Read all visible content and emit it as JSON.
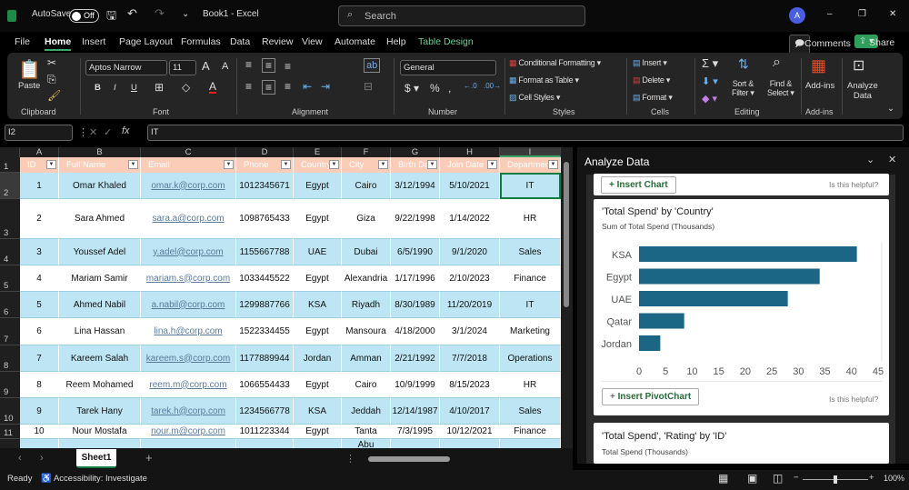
{
  "titlebar": {
    "autosave": "AutoSave",
    "toggle": "Off",
    "doc_title": "Book1 - Excel",
    "search_placeholder": "Search",
    "avatar": "A"
  },
  "menu": {
    "tabs": [
      "File",
      "Home",
      "Insert",
      "Page Layout",
      "Formulas",
      "Data",
      "Review",
      "View",
      "Automate",
      "Help",
      "Table Design"
    ],
    "active": "Home",
    "comments": "Comments",
    "share": "Share"
  },
  "ribbon": {
    "paste": "Paste",
    "font_name": "Aptos Narrow",
    "font_size": "11",
    "number_format": "General",
    "conditional_formatting": "Conditional Formatting",
    "format_as_table": "Format as Table",
    "cell_styles": "Cell Styles",
    "insert": "Insert",
    "delete": "Delete",
    "format": "Format",
    "sort_filter": [
      "Sort &",
      "Filter"
    ],
    "find_select": [
      "Find &",
      "Select"
    ],
    "addins": "Add-ins",
    "analyze_data": [
      "Analyze",
      "Data"
    ],
    "groups": [
      "Clipboard",
      "Font",
      "Alignment",
      "Number",
      "Styles",
      "Cells",
      "Editing",
      "Add-ins"
    ]
  },
  "formula_bar": {
    "name_box": "I2",
    "fx": "fx",
    "value": "IT"
  },
  "sheet": {
    "columns": [
      "A",
      "B",
      "C",
      "D",
      "E",
      "F",
      "G",
      "H",
      "I"
    ],
    "headers": [
      "ID",
      "Full Name",
      "Email",
      "Phone",
      "Country",
      "City",
      "Birth Date",
      "Join Date",
      "Department"
    ],
    "row_numbers": [
      "1",
      "2",
      "3",
      "4",
      "5",
      "6",
      "7",
      "8",
      "9",
      "10",
      "11"
    ],
    "rows": [
      [
        "1",
        "Omar Khaled",
        "omar.k@corp.com",
        "1012345671",
        "Egypt",
        "Cairo",
        "3/12/1994",
        "5/10/2021",
        "IT"
      ],
      [
        "2",
        "Sara Ahmed",
        "sara.a@corp.com",
        "1098765433",
        "Egypt",
        "Giza",
        "9/22/1998",
        "1/14/2022",
        "HR"
      ],
      [
        "3",
        "Youssef Adel",
        "y.adel@corp.com",
        "1155667788",
        "UAE",
        "Dubai",
        "6/5/1990",
        "9/1/2020",
        "Sales"
      ],
      [
        "4",
        "Mariam Samir",
        "mariam.s@corp.com",
        "1033445522",
        "Egypt",
        "Alexandria",
        "1/17/1996",
        "2/10/2023",
        "Finance"
      ],
      [
        "5",
        "Ahmed Nabil",
        "a.nabil@corp.com",
        "1299887766",
        "KSA",
        "Riyadh",
        "8/30/1989",
        "11/20/2019",
        "IT"
      ],
      [
        "6",
        "Lina Hassan",
        "lina.h@corp.com",
        "1522334455",
        "Egypt",
        "Mansoura",
        "4/18/2000",
        "3/1/2024",
        "Marketing"
      ],
      [
        "7",
        "Kareem Salah",
        "kareem.s@corp.com",
        "1177889944",
        "Jordan",
        "Amman",
        "2/21/1992",
        "7/7/2018",
        "Operations"
      ],
      [
        "8",
        "Reem Mohamed",
        "reem.m@corp.com",
        "1066554433",
        "Egypt",
        "Cairo",
        "10/9/1999",
        "8/15/2023",
        "HR"
      ],
      [
        "9",
        "Tarek Hany",
        "tarek.h@corp.com",
        "1234566778",
        "KSA",
        "Jeddah",
        "12/14/1987",
        "4/10/2017",
        "Sales"
      ],
      [
        "10",
        "Nour Mostafa",
        "nour.m@corp.com",
        "1011223344",
        "Egypt",
        "Tanta",
        "7/3/1995",
        "10/12/2021",
        "Finance"
      ],
      [
        "",
        "",
        "",
        "",
        "",
        "Abu",
        "",
        "",
        ""
      ]
    ],
    "sheet_tab": "Sheet1"
  },
  "status": {
    "ready": "Ready",
    "accessibility": "Accessibility: Investigate",
    "zoom": "100%",
    "zoom_level": 100
  },
  "analyze_panel": {
    "title": "Analyze Data",
    "prev_button": "Insert Chart",
    "helpful": "Is this helpful?",
    "card1": {
      "button": "Insert PivotChart",
      "helpful": "Is this helpful?"
    },
    "card2": {
      "title": "'Total Spend', 'Rating' by 'ID'",
      "subtitle": "Total Spend (Thousands)"
    }
  },
  "chart_data": {
    "type": "bar",
    "orientation": "horizontal",
    "title": "'Total Spend' by 'Country'",
    "subtitle": "Sum of Total Spend (Thousands)",
    "categories": [
      "KSA",
      "Egypt",
      "UAE",
      "Qatar",
      "Jordan"
    ],
    "values": [
      41,
      34,
      28,
      8.5,
      4
    ],
    "xlim": [
      0,
      45
    ],
    "ticks": [
      "0",
      "5",
      "10",
      "15",
      "20",
      "25",
      "30",
      "35",
      "40",
      "45"
    ],
    "bar_color": "#1b6585",
    "grid": false
  },
  "colors": {
    "accent": "#107c41",
    "band": "#bde5f3",
    "header": "#fbcdb8"
  }
}
